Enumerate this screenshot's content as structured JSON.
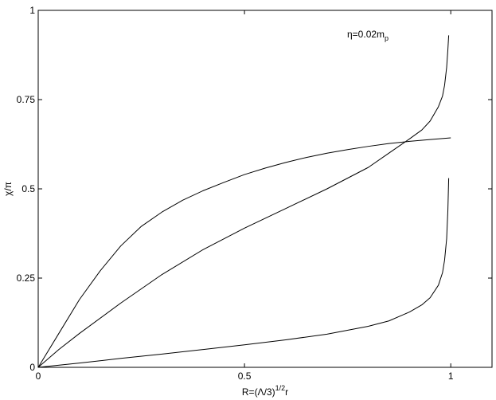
{
  "chart_data": {
    "type": "line",
    "title": "",
    "annotation": {
      "main": "η=0.02m",
      "sub": "p"
    },
    "xlabel": {
      "main": "R=(Λ/3)",
      "sup": "1/2",
      "tail": "r"
    },
    "ylabel": "χ/π",
    "xlim": [
      0,
      1.1
    ],
    "ylim": [
      0,
      1
    ],
    "xticks": [
      {
        "value": 0,
        "label": "0"
      },
      {
        "value": 0.5,
        "label": "0.5"
      },
      {
        "value": 1,
        "label": "1"
      }
    ],
    "yticks": [
      {
        "value": 0,
        "label": "0"
      },
      {
        "value": 0.25,
        "label": "0.25"
      },
      {
        "value": 0.5,
        "label": "0.5"
      },
      {
        "value": 0.75,
        "label": "0.75"
      },
      {
        "value": 1,
        "label": "1"
      }
    ],
    "grid": false,
    "series": [
      {
        "color": "#000000",
        "x": [
          0,
          0.05,
          0.1,
          0.15,
          0.2,
          0.25,
          0.3,
          0.35,
          0.4,
          0.45,
          0.5,
          0.55,
          0.6,
          0.65,
          0.7,
          0.75,
          0.8,
          0.85,
          0.9,
          0.95,
          1.0
        ],
        "y": [
          0,
          0.095,
          0.19,
          0.27,
          0.34,
          0.395,
          0.435,
          0.468,
          0.495,
          0.518,
          0.54,
          0.558,
          0.574,
          0.588,
          0.6,
          0.61,
          0.619,
          0.627,
          0.633,
          0.638,
          0.643
        ]
      },
      {
        "color": "#000000",
        "x": [
          0,
          0.05,
          0.1,
          0.2,
          0.3,
          0.4,
          0.5,
          0.6,
          0.7,
          0.8,
          0.85,
          0.9,
          0.93,
          0.95,
          0.97,
          0.98,
          0.985,
          0.99,
          0.993,
          0.995
        ],
        "y": [
          0,
          0.05,
          0.095,
          0.18,
          0.26,
          0.33,
          0.39,
          0.445,
          0.5,
          0.56,
          0.6,
          0.64,
          0.665,
          0.69,
          0.73,
          0.76,
          0.79,
          0.84,
          0.89,
          0.93
        ]
      },
      {
        "color": "#000000",
        "x": [
          0,
          0.1,
          0.2,
          0.3,
          0.4,
          0.5,
          0.6,
          0.7,
          0.8,
          0.85,
          0.9,
          0.93,
          0.95,
          0.97,
          0.98,
          0.985,
          0.99,
          0.993,
          0.995
        ],
        "y": [
          0,
          0.012,
          0.025,
          0.037,
          0.05,
          0.063,
          0.077,
          0.093,
          0.115,
          0.13,
          0.155,
          0.175,
          0.195,
          0.23,
          0.265,
          0.3,
          0.36,
          0.44,
          0.53
        ]
      }
    ]
  }
}
